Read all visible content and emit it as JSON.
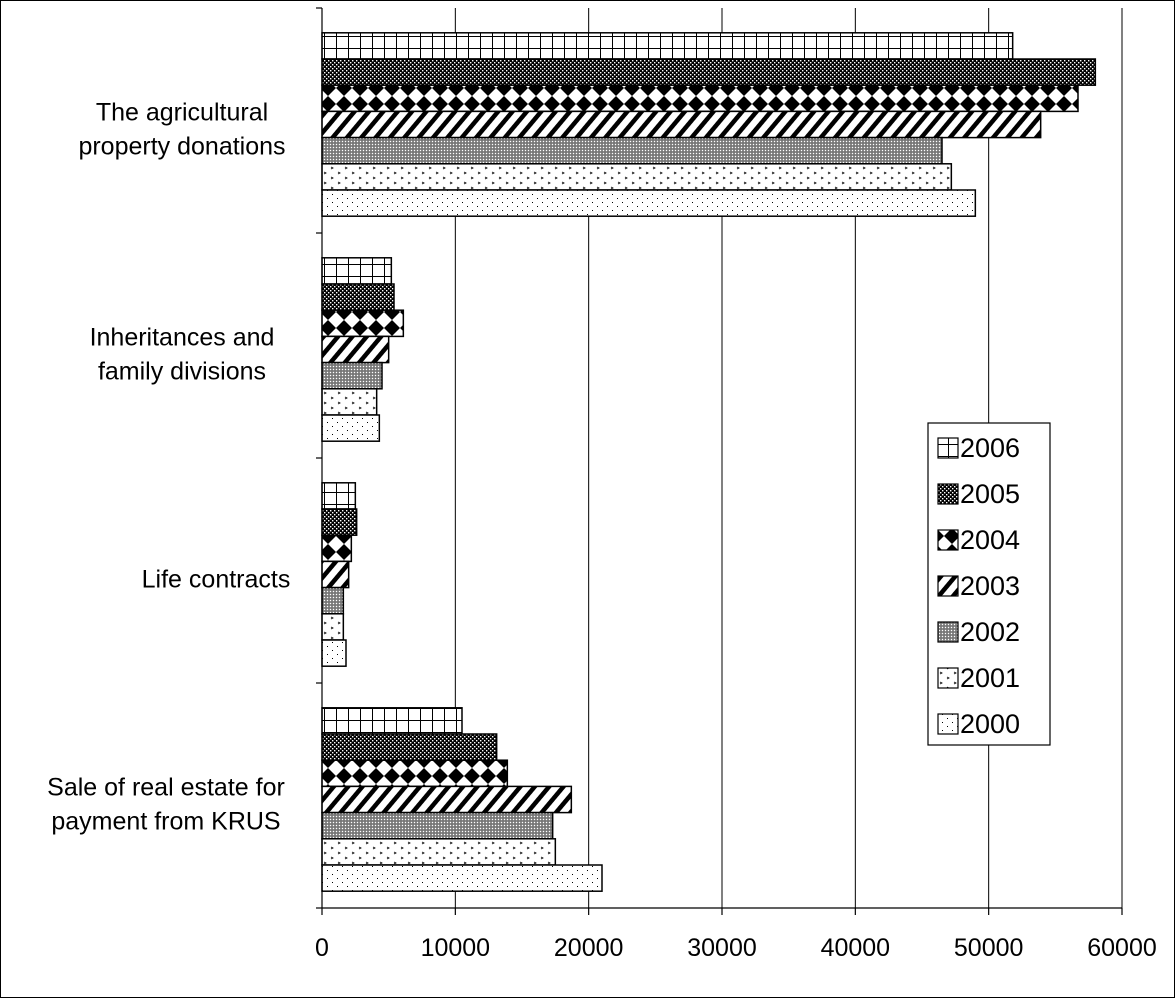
{
  "chart_data": {
    "type": "bar",
    "orientation": "horizontal",
    "title": "",
    "xlabel": "",
    "ylabel": "",
    "xlim": [
      0,
      60000
    ],
    "x_ticks": [
      "0",
      "10000",
      "20000",
      "30000",
      "40000",
      "50000",
      "60000"
    ],
    "vertical_gridlines": true,
    "legend_position": "right",
    "categories": [
      [
        "The agricultural",
        "property donations"
      ],
      [
        "Inheritances and",
        "family divisions"
      ],
      [
        "Life contracts"
      ],
      [
        "Sale of real estate for",
        "payment from KRUS"
      ]
    ],
    "series": [
      {
        "name": "2006",
        "pattern": "grid",
        "values": [
          51800,
          5200,
          2500,
          10500
        ]
      },
      {
        "name": "2005",
        "pattern": "dense-check",
        "values": [
          58000,
          5400,
          2600,
          13100
        ]
      },
      {
        "name": "2004",
        "pattern": "diamonds",
        "values": [
          56700,
          6100,
          2200,
          13900
        ]
      },
      {
        "name": "2003",
        "pattern": "diagonal",
        "values": [
          53900,
          5000,
          2000,
          18700
        ]
      },
      {
        "name": "2002",
        "pattern": "gray-dots",
        "values": [
          46500,
          4500,
          1600,
          17300
        ]
      },
      {
        "name": "2001",
        "pattern": "arrows",
        "values": [
          47200,
          4100,
          1600,
          17500
        ]
      },
      {
        "name": "2000",
        "pattern": "sparse-dots",
        "values": [
          49000,
          4300,
          1800,
          21000
        ]
      }
    ]
  }
}
